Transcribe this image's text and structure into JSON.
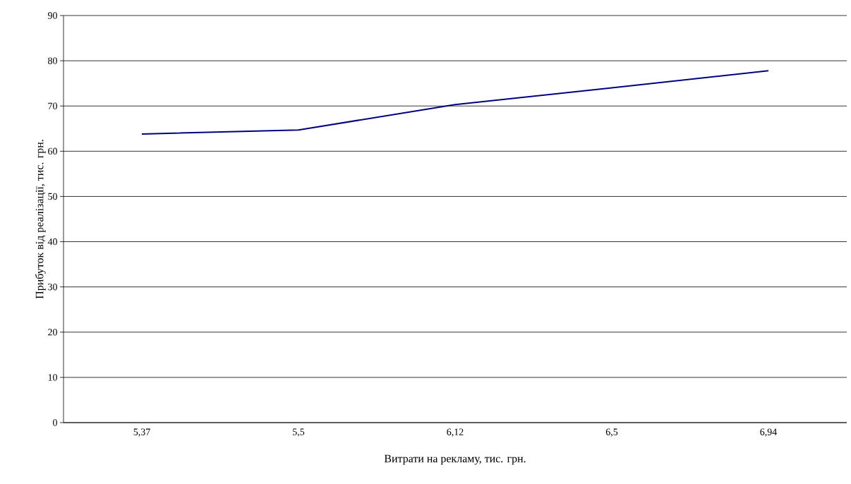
{
  "chart_data": {
    "type": "line",
    "xlabel": "Витрати на рекламу, тис. грн.",
    "ylabel": "Прибуток від реалізації, тис. грн.",
    "categories": [
      "5,37",
      "5,5",
      "6,12",
      "6,5",
      "6,94"
    ],
    "series": [
      {
        "color": "#000080",
        "values": [
          63.8,
          64.7,
          70.3,
          74,
          77.8
        ]
      }
    ],
    "ylim": [
      0,
      90
    ],
    "yticks": [
      0,
      10,
      20,
      30,
      40,
      50,
      60,
      70,
      80,
      90
    ],
    "grid": "y",
    "marker": "none",
    "line_style": "solid",
    "legend": false
  }
}
